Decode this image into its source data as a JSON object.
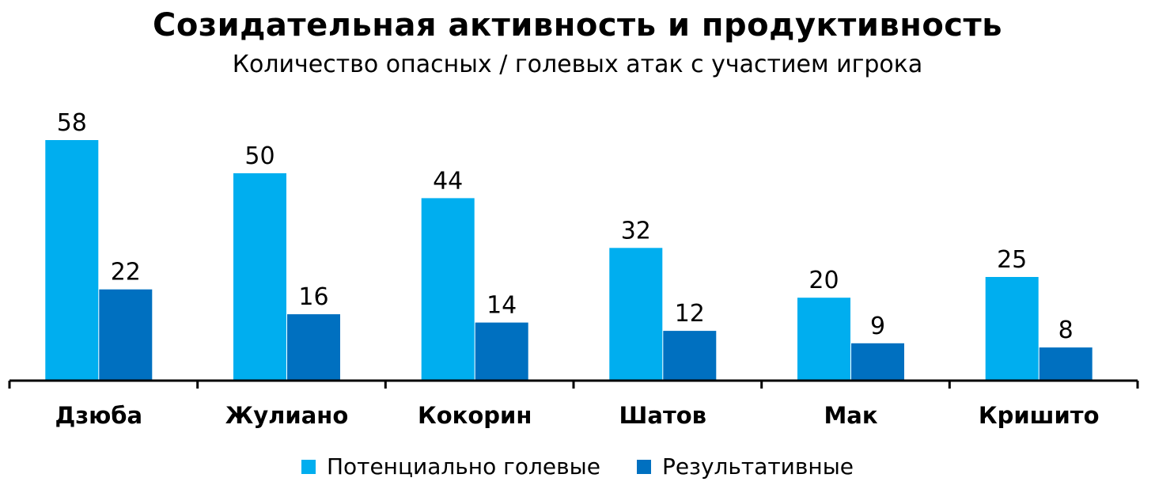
{
  "chart_data": {
    "type": "bar",
    "title": "Созидательная активность и продуктивность",
    "subtitle": "Количество опасных / голевых  атак с участием игрока",
    "categories": [
      "Дзюба",
      "Жулиано",
      "Кокорин",
      "Шатов",
      "Мак",
      "Кришито"
    ],
    "series": [
      {
        "name": "Потенциально голевые",
        "color": "#00aeef",
        "values": [
          58,
          50,
          44,
          32,
          20,
          25
        ]
      },
      {
        "name": "Результативные",
        "color": "#0070c0",
        "values": [
          22,
          16,
          14,
          12,
          9,
          8
        ]
      }
    ],
    "ylim": [
      0,
      58
    ],
    "grid": false,
    "legend_position": "bottom"
  }
}
